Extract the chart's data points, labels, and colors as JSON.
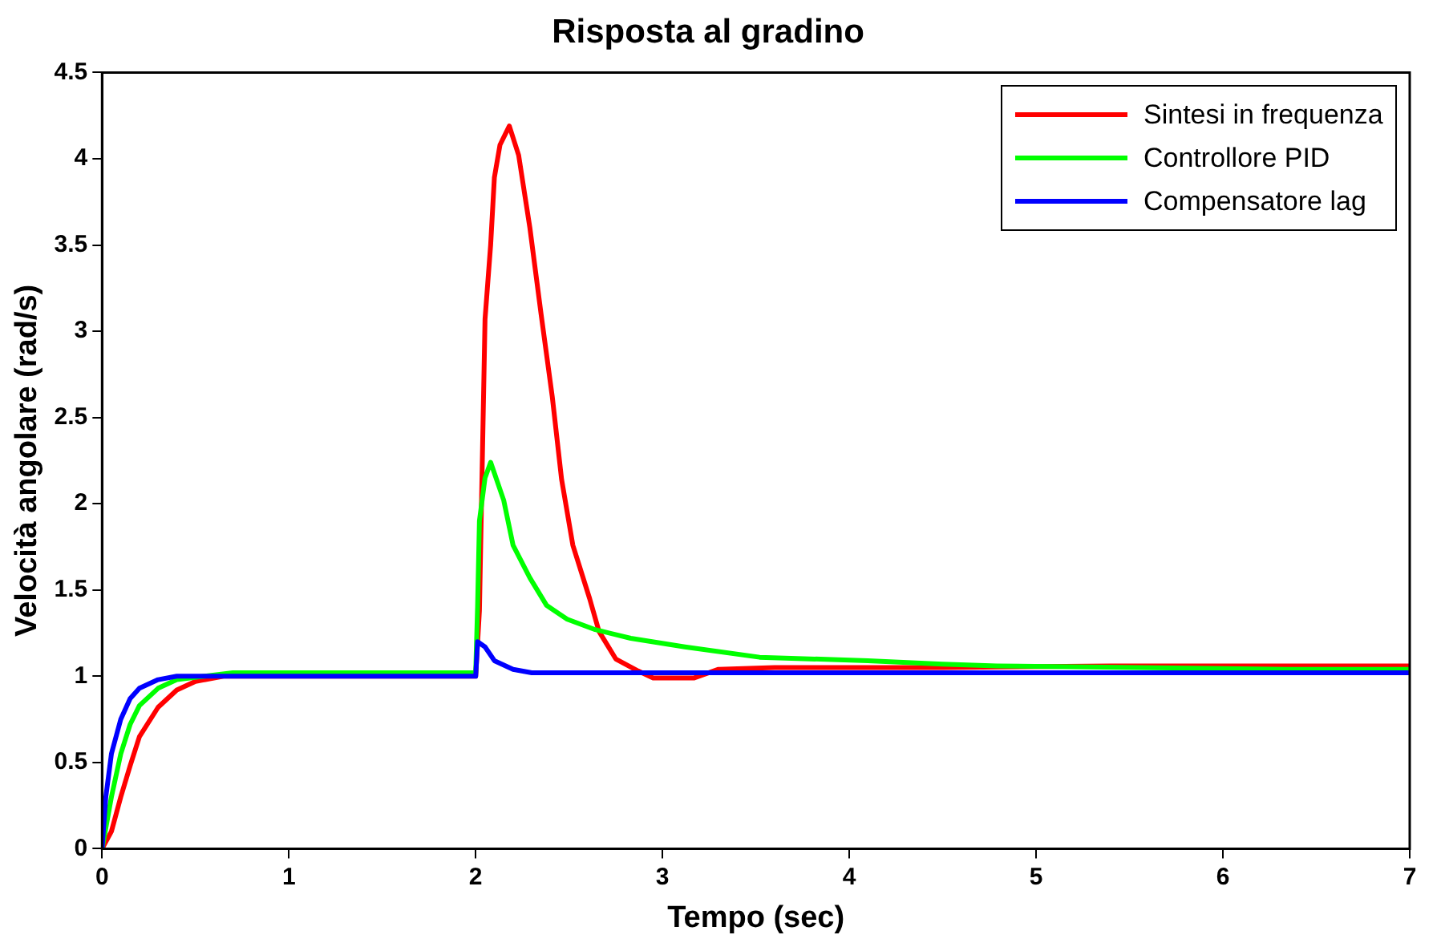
{
  "chart_data": {
    "type": "line",
    "title": "Risposta al gradino",
    "xlabel": "Tempo (sec)",
    "ylabel": "Velocità angolare (rad/s)",
    "xlim": [
      0,
      7
    ],
    "xticks": [
      0,
      1,
      2,
      3,
      4,
      5,
      6,
      7
    ],
    "ylim": [
      0,
      4.5
    ],
    "yticks": [
      0,
      0.5,
      1,
      1.5,
      2,
      2.5,
      3,
      3.5,
      4,
      4.5
    ],
    "grid": false,
    "legend": "top right",
    "marker": "none",
    "line_style": "solid",
    "series": [
      {
        "name": "Sintesi in frequenza",
        "color": "#ff0000",
        "x": [
          0,
          0.05,
          0.1,
          0.15,
          0.2,
          0.3,
          0.4,
          0.5,
          0.65,
          2,
          2.02,
          2.05,
          2.08,
          2.1,
          2.13,
          2.18,
          2.23,
          2.29,
          2.35,
          2.41,
          2.46,
          2.52,
          2.61,
          2.66,
          2.75,
          2.87,
          2.95,
          3.17,
          3.3,
          3.6,
          4.5,
          5.4,
          7
        ],
        "values": [
          0,
          0.1,
          0.3,
          0.48,
          0.65,
          0.82,
          0.92,
          0.97,
          1,
          1,
          1.38,
          3.07,
          3.5,
          3.89,
          4.08,
          4.19,
          4.02,
          3.6,
          3.1,
          2.62,
          2.14,
          1.76,
          1.45,
          1.26,
          1.1,
          1.03,
          0.99,
          0.99,
          1.04,
          1.05,
          1.05,
          1.06,
          1.06
        ]
      },
      {
        "name": "Controllore PID",
        "color": "#00ff00",
        "x": [
          0,
          0.05,
          0.1,
          0.15,
          0.2,
          0.3,
          0.4,
          0.55,
          0.7,
          2,
          2.01,
          2.02,
          2.05,
          2.08,
          2.15,
          2.2,
          2.29,
          2.38,
          2.49,
          2.64,
          2.83,
          3.12,
          3.52,
          4.1,
          4.5,
          4.79,
          6.34,
          7
        ],
        "values": [
          0,
          0.3,
          0.55,
          0.72,
          0.83,
          0.93,
          0.98,
          1,
          1.02,
          1.02,
          1.4,
          1.9,
          2.15,
          2.24,
          2.02,
          1.76,
          1.57,
          1.41,
          1.33,
          1.27,
          1.22,
          1.17,
          1.11,
          1.09,
          1.07,
          1.06,
          1.04,
          1.04
        ]
      },
      {
        "name": "Compensatore lag",
        "color": "#0000ff",
        "x": [
          0,
          0.02,
          0.05,
          0.1,
          0.15,
          0.2,
          0.3,
          0.4,
          2,
          2.01,
          2.05,
          2.1,
          2.2,
          2.3,
          7
        ],
        "values": [
          0,
          0.3,
          0.55,
          0.75,
          0.87,
          0.93,
          0.98,
          1,
          1,
          1.2,
          1.17,
          1.09,
          1.04,
          1.02,
          1.02
        ]
      }
    ]
  }
}
